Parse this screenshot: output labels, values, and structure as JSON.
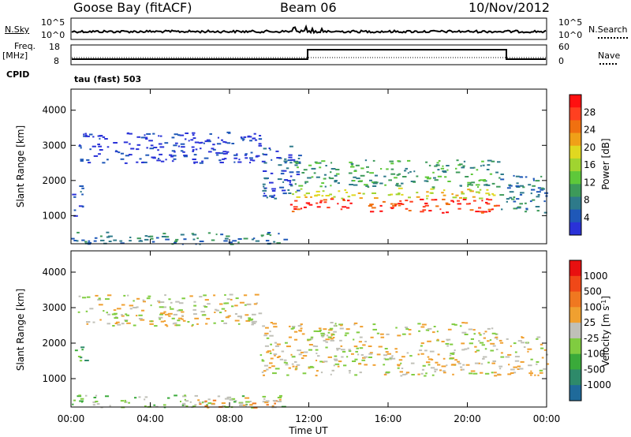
{
  "header": {
    "station": "Goose Bay (fitACF)",
    "beam": "Beam 06",
    "date": "10/Nov/2012"
  },
  "top_panels": {
    "nsky_label": "N.Sky",
    "nsky_ticks": [
      "10^5",
      "10^0"
    ],
    "nsearch_label": "N.Search",
    "nsearch_ticks": [
      "10^5",
      "10^0"
    ],
    "freq_label_line1": "Freq.",
    "freq_label_line2": "[MHz]",
    "freq_ticks": [
      "18",
      "8"
    ],
    "nave_label": "Nave",
    "nave_ticks": [
      "60",
      "0"
    ],
    "cpid_label": "CPID",
    "cpid_value": "tau (fast) 503"
  },
  "chart_data": [
    {
      "type": "heatmap",
      "name": "power-panel",
      "ylabel": "Slant Range [km]",
      "ylim": [
        200,
        4600
      ],
      "yticks": [
        "4000",
        "3000",
        "2000",
        "1000"
      ],
      "colorbar_label": "Power [dB]",
      "colorbar_ticks": [
        "28",
        "24",
        "20",
        "16",
        "12",
        "8",
        "4"
      ],
      "colorbar_colors": [
        "#e8e8e8",
        "#2a32d8",
        "#1f58b8",
        "#2e7a8a",
        "#3d9a5a",
        "#5ec83a",
        "#a0d430",
        "#e0d820",
        "#f0a018",
        "#f07010",
        "#ff4020",
        "#ff1010"
      ],
      "regions": [
        {
          "t0": 0.0,
          "t1": 10.8,
          "r0": 200,
          "r1": 550,
          "level": 3
        },
        {
          "t0": 0.0,
          "t1": 0.7,
          "r0": 1000,
          "r1": 1300,
          "level": 2
        },
        {
          "t0": 0.0,
          "t1": 0.7,
          "r0": 1500,
          "r1": 1950,
          "level": 2
        },
        {
          "t0": 0.3,
          "t1": 9.5,
          "r0": 2500,
          "r1": 3400,
          "level": 1
        },
        {
          "t0": 9.5,
          "t1": 11.5,
          "r0": 1400,
          "r1": 3000,
          "level": 2
        },
        {
          "t0": 11.0,
          "t1": 21.5,
          "r0": 1100,
          "r1": 1500,
          "level": 10
        },
        {
          "t0": 11.0,
          "t1": 21.5,
          "r0": 1500,
          "r1": 1800,
          "level": 7
        },
        {
          "t0": 11.0,
          "t1": 21.5,
          "r0": 1800,
          "r1": 2600,
          "level": 4
        },
        {
          "t0": 21.5,
          "t1": 24.0,
          "r0": 1100,
          "r1": 2200,
          "level": 3
        }
      ]
    },
    {
      "type": "heatmap",
      "name": "velocity-panel",
      "ylabel": "Slant Range [km]",
      "ylim": [
        200,
        4600
      ],
      "yticks": [
        "4000",
        "3000",
        "2000",
        "1000"
      ],
      "colorbar_label": "Velocity [m s^-1]",
      "colorbar_ticks": [
        "1000",
        "500",
        "100",
        "25",
        "-25",
        "-100",
        "-500",
        "-1000"
      ],
      "colorbar_colors": [
        "#2a36c8",
        "#1f6a9a",
        "#2e8a6a",
        "#3aaa3a",
        "#80cc40",
        "#c0c0b8",
        "#f0a030",
        "#f07820",
        "#f04818",
        "#e81010"
      ],
      "regions": [
        {
          "t0": 0.0,
          "t1": 10.8,
          "r0": 200,
          "r1": 550,
          "level": 4
        },
        {
          "t0": 6.0,
          "t1": 10.5,
          "r0": 200,
          "r1": 500,
          "level": 6
        },
        {
          "t0": 0.0,
          "t1": 0.7,
          "r0": 1500,
          "r1": 1950,
          "level": 3
        },
        {
          "t0": 0.3,
          "t1": 9.5,
          "r0": 2500,
          "r1": 3400,
          "level": 5
        },
        {
          "t0": 9.5,
          "t1": 21.5,
          "r0": 1100,
          "r1": 2600,
          "level": 5
        },
        {
          "t0": 21.5,
          "t1": 24.0,
          "r0": 1100,
          "r1": 2200,
          "level": 5
        }
      ]
    }
  ],
  "x_axis": {
    "label": "Time UT",
    "ticks": [
      "00:00",
      "04:00",
      "08:00",
      "12:00",
      "16:00",
      "20:00",
      "00:00"
    ],
    "range_hours": [
      0,
      24
    ]
  }
}
